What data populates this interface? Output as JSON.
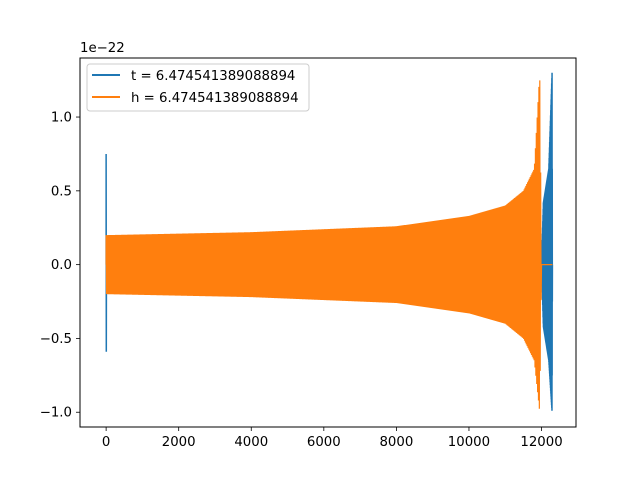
{
  "chart_data": {
    "type": "line",
    "title": "",
    "xlabel": "",
    "ylabel": "",
    "y_offset_label": "1e−22",
    "xlim": [
      -720,
      12950
    ],
    "ylim": [
      -1.1,
      1.4
    ],
    "x_ticks": [
      0,
      2000,
      4000,
      6000,
      8000,
      10000,
      12000
    ],
    "x_tick_labels": [
      "0",
      "2000",
      "4000",
      "6000",
      "8000",
      "10000",
      "12000"
    ],
    "y_ticks": [
      -1.0,
      -0.5,
      0.0,
      0.5,
      1.0
    ],
    "y_tick_labels": [
      "−1.0",
      "−0.5",
      "0.0",
      "0.5",
      "1.0"
    ],
    "grid": false,
    "legend_position": "top-left",
    "series": [
      {
        "name": "t = 6.474541389088894",
        "color": "#1f77b4",
        "x_range": [
          0,
          12300
        ],
        "envelope": [
          {
            "x": 0,
            "upper": 0.75,
            "lower": -0.59
          },
          {
            "x": 12000,
            "upper": 0.0,
            "lower": 0.0
          },
          {
            "x": 12050,
            "upper": 0.42,
            "lower": -0.42
          },
          {
            "x": 12200,
            "upper": 0.65,
            "lower": -0.65
          },
          {
            "x": 12290,
            "upper": 1.3,
            "lower": -1.0
          },
          {
            "x": 12300,
            "upper": 0.0,
            "lower": 0.0
          }
        ]
      },
      {
        "name": "h = 6.474541389088894",
        "color": "#ff7f0e",
        "x_range": [
          0,
          12000
        ],
        "envelope": [
          {
            "x": 0,
            "upper": 0.2,
            "lower": -0.2
          },
          {
            "x": 4000,
            "upper": 0.22,
            "lower": -0.22
          },
          {
            "x": 8000,
            "upper": 0.26,
            "lower": -0.26
          },
          {
            "x": 10000,
            "upper": 0.33,
            "lower": -0.33
          },
          {
            "x": 11000,
            "upper": 0.4,
            "lower": -0.4
          },
          {
            "x": 11500,
            "upper": 0.5,
            "lower": -0.5
          },
          {
            "x": 11800,
            "upper": 0.65,
            "lower": -0.65
          },
          {
            "x": 11950,
            "upper": 1.3,
            "lower": -1.0
          },
          {
            "x": 12000,
            "upper": 0.0,
            "lower": 0.0
          },
          {
            "x": 12300,
            "upper": 0.0,
            "lower": 0.0
          }
        ]
      }
    ]
  }
}
